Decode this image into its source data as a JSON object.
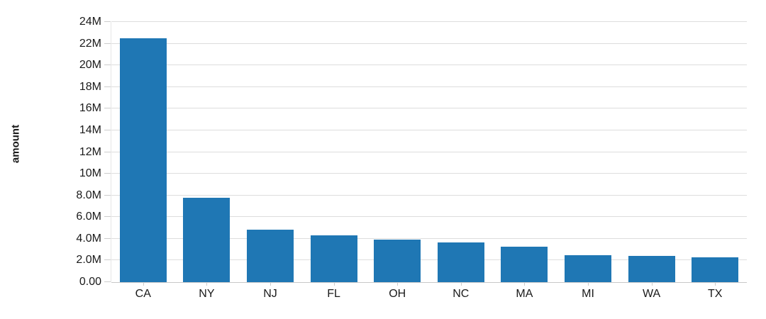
{
  "chart_data": {
    "type": "bar",
    "title": "",
    "xlabel": "",
    "ylabel": "amount",
    "categories": [
      "CA",
      "NY",
      "NJ",
      "FL",
      "OH",
      "NC",
      "MA",
      "MI",
      "WA",
      "TX"
    ],
    "values": [
      22500000,
      7800000,
      4850000,
      4300000,
      3900000,
      3650000,
      3250000,
      2500000,
      2450000,
      2300000
    ],
    "ylim": [
      0,
      24000000
    ],
    "y_ticks": [
      {
        "value": 0,
        "label": "0.00"
      },
      {
        "value": 2000000,
        "label": "2.0M"
      },
      {
        "value": 4000000,
        "label": "4.0M"
      },
      {
        "value": 6000000,
        "label": "6.0M"
      },
      {
        "value": 8000000,
        "label": "8.0M"
      },
      {
        "value": 10000000,
        "label": "10M"
      },
      {
        "value": 12000000,
        "label": "12M"
      },
      {
        "value": 14000000,
        "label": "14M"
      },
      {
        "value": 16000000,
        "label": "16M"
      },
      {
        "value": 18000000,
        "label": "18M"
      },
      {
        "value": 20000000,
        "label": "20M"
      },
      {
        "value": 22000000,
        "label": "22M"
      },
      {
        "value": 24000000,
        "label": "24M"
      }
    ],
    "grid": true,
    "legend": "none"
  },
  "colors": {
    "bar": "#1f77b4",
    "grid": "#dddddd",
    "zero_line": "#c8c8c8",
    "tick": "#cccccc",
    "axis_domain": "#e7e7e7",
    "text": "#1a1a1a",
    "background": "#ffffff"
  }
}
